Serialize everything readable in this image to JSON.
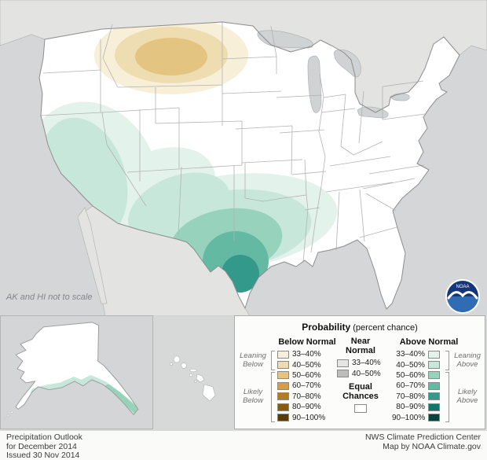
{
  "map": {
    "scale_note": "AK and HI not to scale",
    "noaa_text": "NOAA"
  },
  "legend": {
    "title_main": "Probability",
    "title_sub": " (percent chance)",
    "below_header": "Below Normal",
    "near_header_l1": "Near",
    "near_header_l2": "Normal",
    "above_header": "Above Normal",
    "equal_l1": "Equal",
    "equal_l2": "Chances",
    "equal_color": "#ffffff",
    "leaning_below_l1": "Leaning",
    "leaning_below_l2": "Below",
    "likely_below_l1": "Likely",
    "likely_below_l2": "Below",
    "leaning_above_l1": "Leaning",
    "leaning_above_l2": "Above",
    "likely_above_l1": "Likely",
    "likely_above_l2": "Above",
    "below_rows": [
      {
        "label": "33–40%",
        "color": "#f8efd9"
      },
      {
        "label": "40–50%",
        "color": "#efddb2"
      },
      {
        "label": "50–60%",
        "color": "#e3c581"
      },
      {
        "label": "60–70%",
        "color": "#d29f48"
      },
      {
        "label": "70–80%",
        "color": "#b27b24"
      },
      {
        "label": "80–90%",
        "color": "#8a5a14"
      },
      {
        "label": "90–100%",
        "color": "#5c3a0a"
      }
    ],
    "near_rows": [
      {
        "label": "33–40%",
        "color": "#e6e6e6"
      },
      {
        "label": "40–50%",
        "color": "#bdbdbd"
      }
    ],
    "above_rows": [
      {
        "label": "33–40%",
        "color": "#e4f2ec"
      },
      {
        "label": "40–50%",
        "color": "#c8e7db"
      },
      {
        "label": "50–60%",
        "color": "#97d2bd"
      },
      {
        "label": "60–70%",
        "color": "#63b9a2"
      },
      {
        "label": "70–80%",
        "color": "#33998a"
      },
      {
        "label": "80–90%",
        "color": "#12776a"
      },
      {
        "label": "90–100%",
        "color": "#07443c"
      }
    ]
  },
  "footer": {
    "left_l1": "Precipitation Outlook",
    "left_l2": "for December 2014",
    "left_l3": "Issued 30 Nov 2014",
    "right_l1": "NWS Climate Prediction Center",
    "right_l2": "Map by NOAA Climate.gov"
  }
}
